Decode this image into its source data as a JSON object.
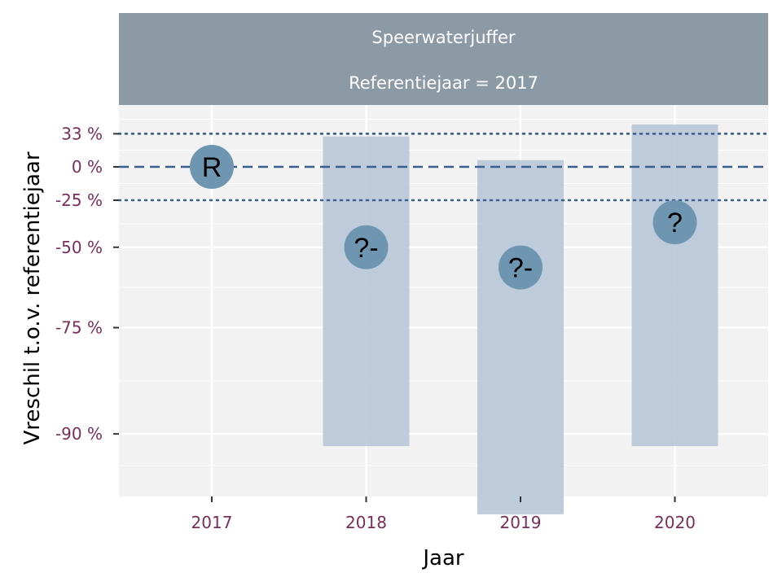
{
  "chart_data": {
    "type": "scatter",
    "facet_title": "Speerwaterjuffer",
    "facet_subtitle": "Referentiejaar = 2017",
    "xlabel": "Jaar",
    "ylabel": "Vreschil t.o.v. referentiejaar",
    "scale": "log-ratio",
    "categories": [
      "2017",
      "2018",
      "2019",
      "2020"
    ],
    "y_ticks": [
      {
        "label": "33 %",
        "value": 33
      },
      {
        "label": "0 %",
        "value": 0
      },
      {
        "label": "-25 %",
        "value": -25
      },
      {
        "label": "-50 %",
        "value": -50
      },
      {
        "label": "-75 %",
        "value": -75
      },
      {
        "label": "-90 %",
        "value": -90
      }
    ],
    "reference_lines": [
      {
        "value": 33,
        "style": "dotted"
      },
      {
        "value": 0,
        "style": "dashed"
      },
      {
        "value": -25,
        "style": "dotted"
      }
    ],
    "points": [
      {
        "year": "2017",
        "estimate": 0,
        "lower": null,
        "upper": null,
        "label": "R"
      },
      {
        "year": "2018",
        "estimate": -50,
        "lower": -91,
        "upper": 30,
        "label": "?-"
      },
      {
        "year": "2019",
        "estimate": -58,
        "lower": -95,
        "upper": 6,
        "label": "?-"
      },
      {
        "year": "2020",
        "estimate": -38,
        "lower": -91,
        "upper": 44,
        "label": "?"
      }
    ],
    "colors": {
      "strip": "#8c9aa6",
      "panel": "#f2f2f2",
      "interval": "#b8c6d8",
      "point": "#6f96b1",
      "reference_line": "#3a5f8f",
      "tick_text": "#7a2e5a"
    },
    "grid": true
  }
}
